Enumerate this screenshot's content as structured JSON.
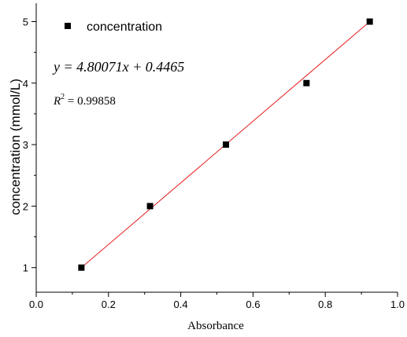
{
  "chart_data": {
    "type": "scatter",
    "xlabel": "Absorbance",
    "ylabel": "concentration (mmol/L)",
    "xlim": [
      0.0,
      1.0
    ],
    "ylim": [
      0.6,
      5.3
    ],
    "x_ticks": [
      "0.0",
      "0.2",
      "0.4",
      "0.6",
      "0.8",
      "1.0"
    ],
    "y_ticks": [
      "1",
      "2",
      "3",
      "4",
      "5"
    ],
    "series": [
      {
        "name": "concentration",
        "marker": "square",
        "color": "#000000",
        "points": [
          {
            "x": 0.125,
            "y": 1
          },
          {
            "x": 0.315,
            "y": 2
          },
          {
            "x": 0.525,
            "y": 3
          },
          {
            "x": 0.748,
            "y": 4
          },
          {
            "x": 0.923,
            "y": 5
          }
        ]
      }
    ],
    "fit": {
      "color": "#e41a1c",
      "x_range": [
        0.125,
        0.923
      ],
      "y_range": [
        1.0,
        5.0
      ],
      "equation": "y = 4.80071x + 0.4465",
      "r2_label": "R",
      "r2_sup": "2",
      "r2_value": " = 0.99858"
    },
    "legend": {
      "label": "concentration",
      "placement": "top-left"
    },
    "grid": false
  }
}
